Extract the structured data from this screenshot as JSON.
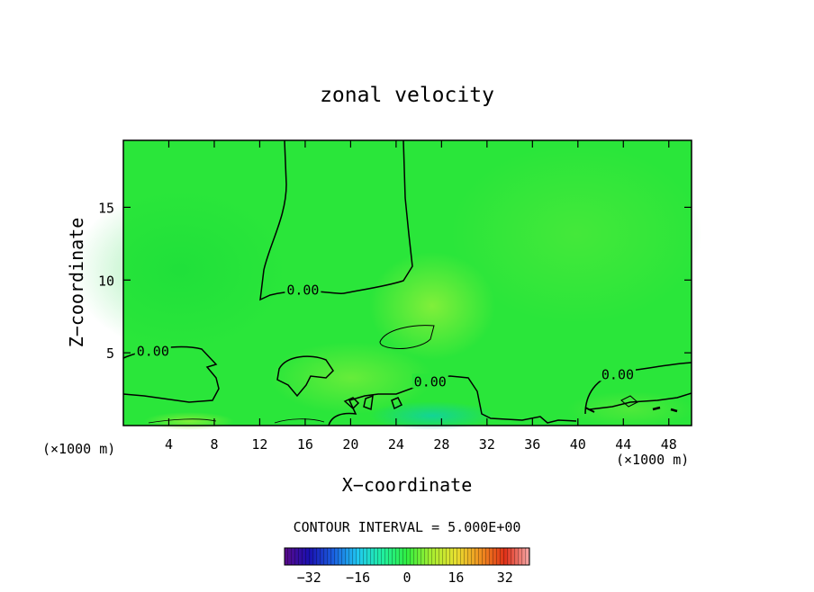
{
  "chart_data": {
    "type": "heatmap",
    "title": "zonal velocity",
    "xlabel": "X−coordinate",
    "ylabel": "Z−coordinate",
    "x_units_left": "(×1000 m)",
    "x_units_right": "(×1000 m)",
    "xlim": [
      0,
      50
    ],
    "ylim": [
      0,
      19.6
    ],
    "x_ticks": [
      4,
      8,
      12,
      16,
      20,
      24,
      28,
      32,
      36,
      40,
      44,
      48
    ],
    "x_tick_labels": [
      "4",
      "8",
      "12",
      "16",
      "20",
      "24",
      "28",
      "32",
      "36",
      "40",
      "44",
      "48"
    ],
    "y_ticks": [
      5,
      10,
      15
    ],
    "y_tick_labels": [
      "5",
      "10",
      "15"
    ],
    "background_color": "#2ae63a",
    "contour_labels": [
      {
        "text": "0.00",
        "x": 2.6,
        "y": 5.1
      },
      {
        "text": "0.00",
        "x": 15.8,
        "y": 9.3
      },
      {
        "text": "0.00",
        "x": 27.0,
        "y": 3.0
      },
      {
        "text": "0.00",
        "x": 43.5,
        "y": 3.5
      }
    ],
    "contour_interval_text": "CONTOUR INTERVAL = 5.000E+00",
    "colorbar": {
      "range": [
        -40,
        40
      ],
      "tick_values": [
        -32,
        -16,
        0,
        16,
        32
      ],
      "tick_labels": [
        "−32",
        "−16",
        "0",
        "16",
        "32"
      ],
      "stops": [
        "#5a0a8a",
        "#1a10b0",
        "#1a60e0",
        "#20c8f0",
        "#20f0a0",
        "#30ee40",
        "#a8ee30",
        "#e8e030",
        "#f09020",
        "#e03018",
        "#f4a8a8"
      ]
    }
  }
}
